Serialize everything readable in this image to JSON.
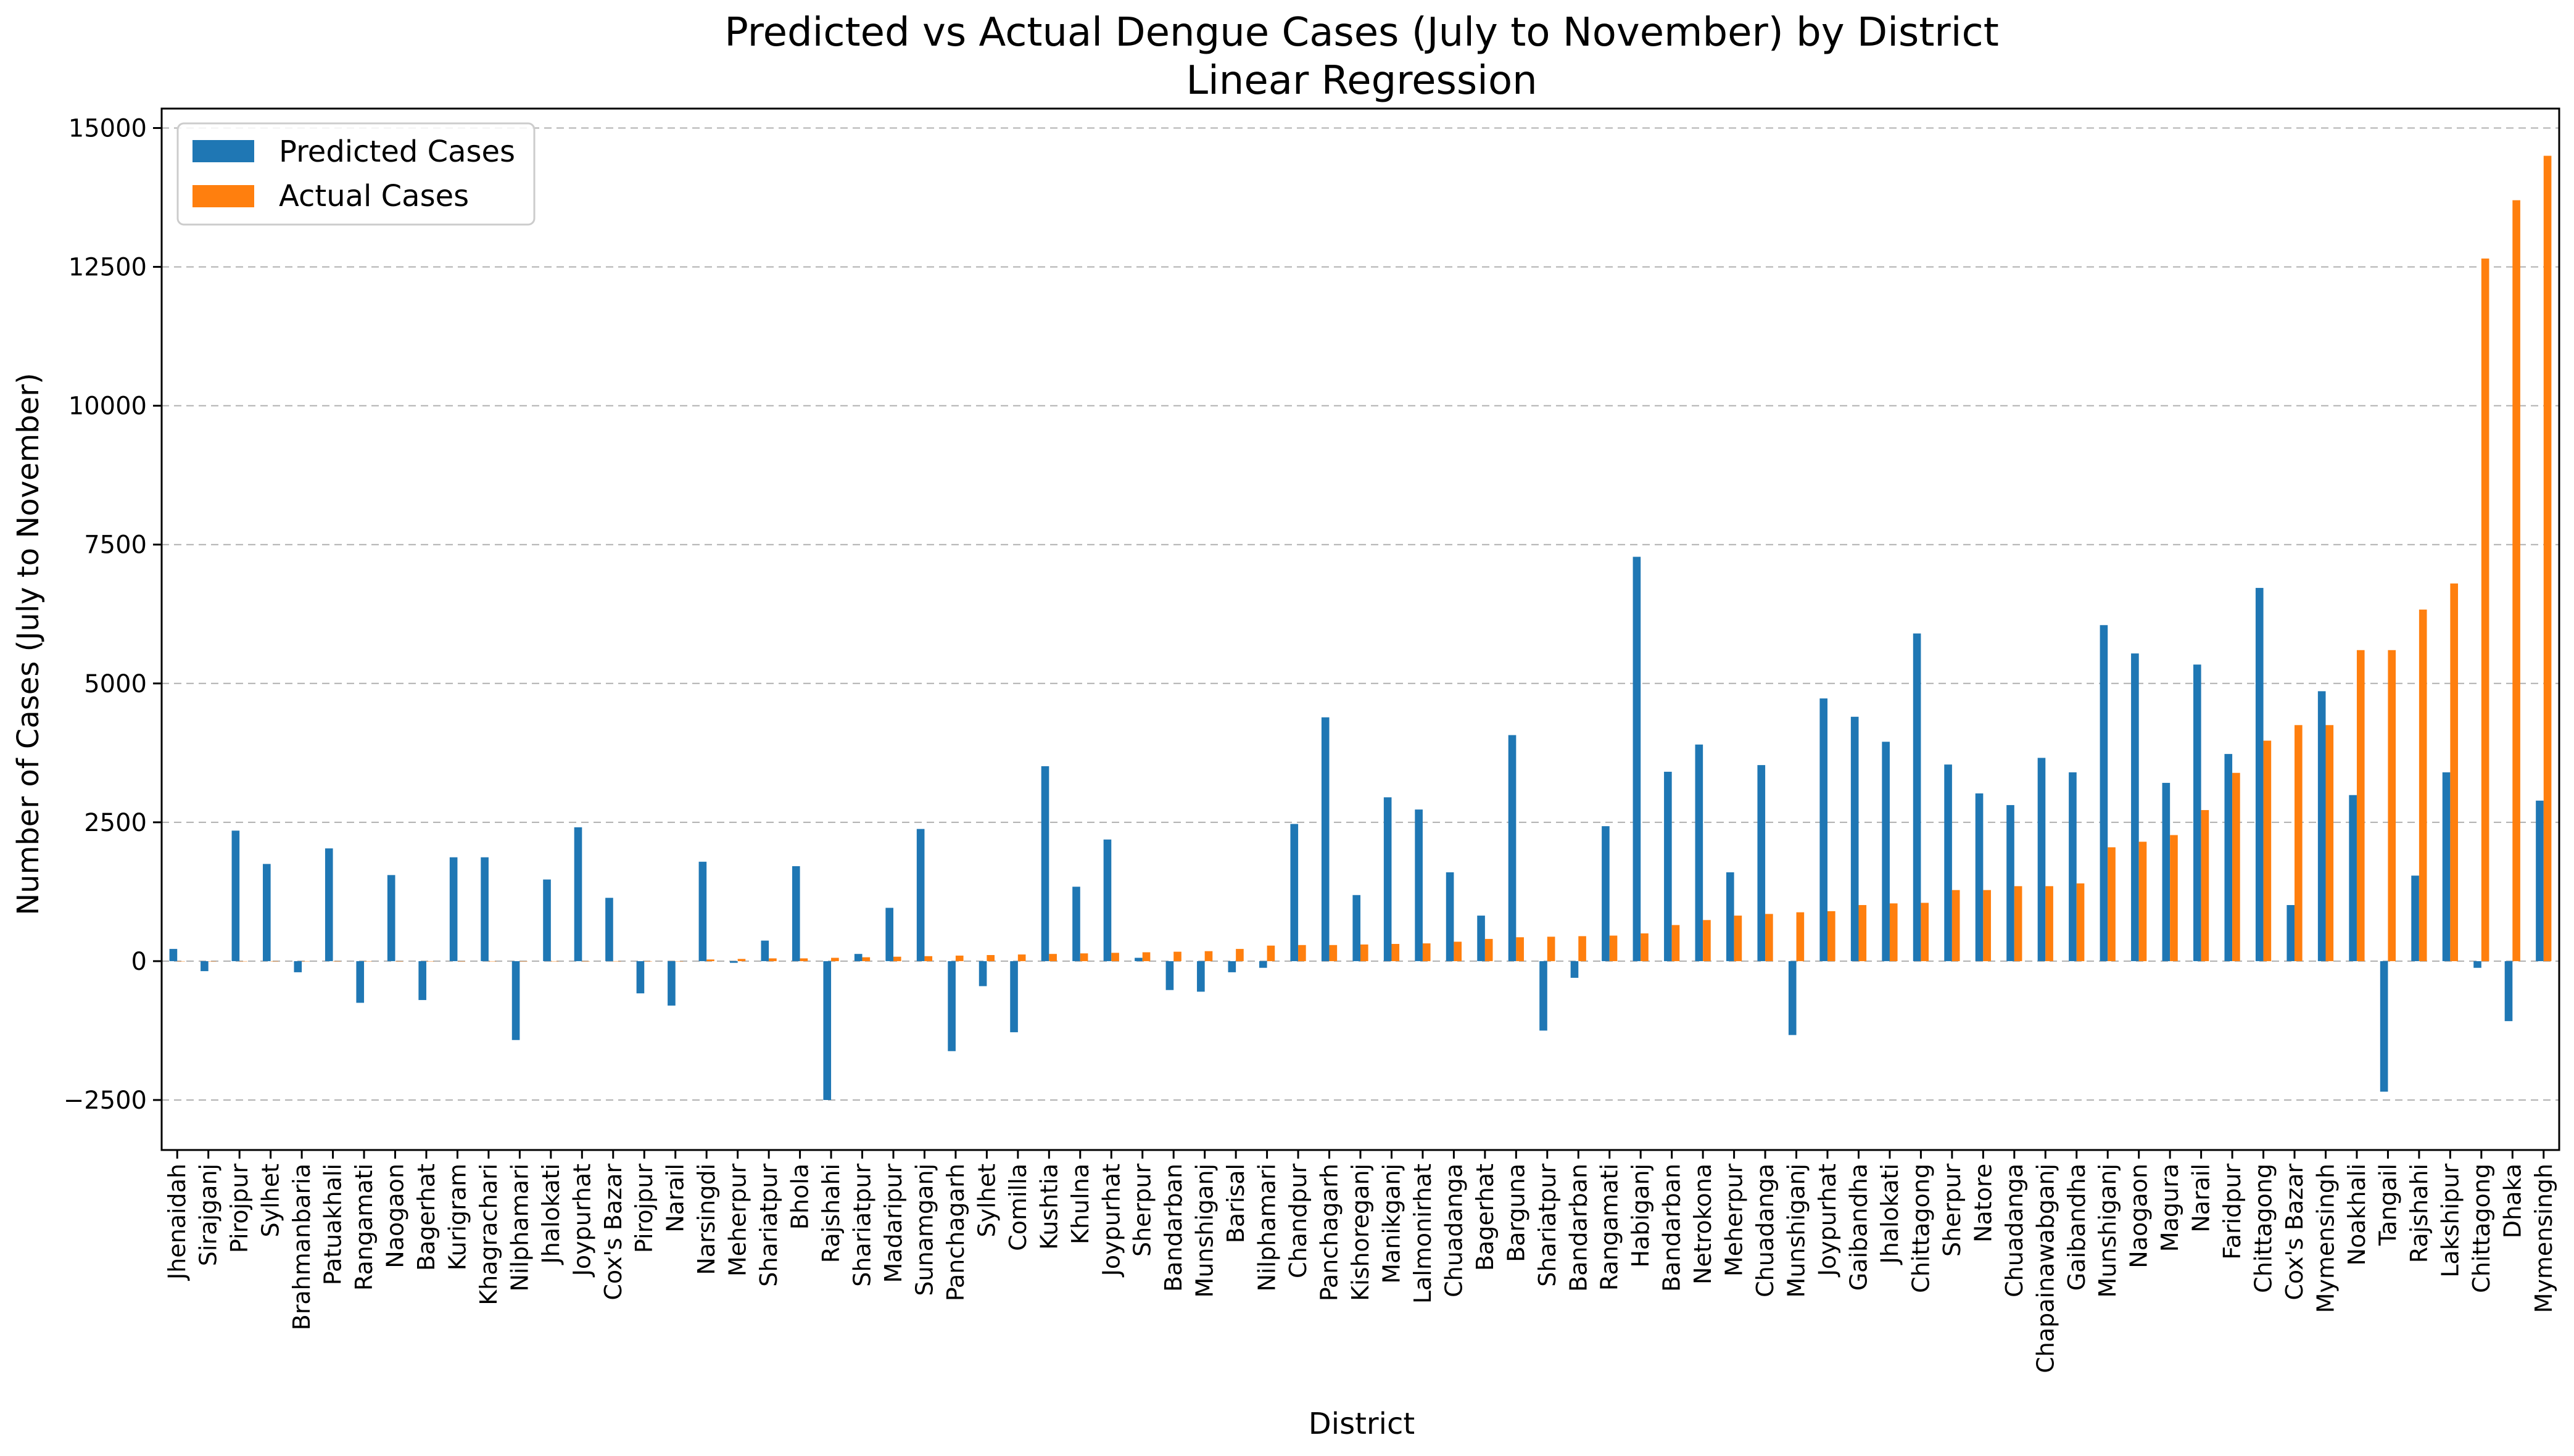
{
  "chart_data": {
    "type": "bar",
    "title": "Predicted vs Actual Dengue Cases (July to November) by District",
    "subtitle": "Linear Regression",
    "xlabel": "District",
    "ylabel": "Number of Cases (July to November)",
    "ylim": [
      -3400,
      15350
    ],
    "yticks": [
      -2500,
      0,
      2500,
      5000,
      7500,
      10000,
      12500,
      15000
    ],
    "ytick_labels": [
      "−2500",
      "0",
      "2500",
      "5000",
      "7500",
      "10000",
      "12500",
      "15000"
    ],
    "grid": "y-dashed",
    "legend_position": "top-left",
    "categories": [
      "Jhenaidah",
      "Sirajganj",
      "Pirojpur",
      "Sylhet",
      "Brahmanbaria",
      "Patuakhali",
      "Rangamati",
      "Naogaon",
      "Bagerhat",
      "Kurigram",
      "Khagrachari",
      "Nilphamari",
      "Jhalokati",
      "Joypurhat",
      "Cox's Bazar",
      "Pirojpur",
      "Narail",
      "Narsingdi",
      "Meherpur",
      "Shariatpur",
      "Bhola",
      "Rajshahi",
      "Shariatpur",
      "Madaripur",
      "Sunamganj",
      "Panchagarh",
      "Sylhet",
      "Comilla",
      "Kushtia",
      "Khulna",
      "Joypurhat",
      "Sherpur",
      "Bandarban",
      "Munshiganj",
      "Barisal",
      "Nilphamari",
      "Chandpur",
      "Panchagarh",
      "Kishoreganj",
      "Manikganj",
      "Lalmonirhat",
      "Chuadanga",
      "Bagerhat",
      "Barguna",
      "Shariatpur",
      "Bandarban",
      "Rangamati",
      "Habiganj",
      "Bandarban",
      "Netrokona",
      "Meherpur",
      "Chuadanga",
      "Munshiganj",
      "Joypurhat",
      "Gaibandha",
      "Jhalokati",
      "Chittagong",
      "Sherpur",
      "Natore",
      "Chuadanga",
      "Chapainawabganj",
      "Gaibandha",
      "Munshiganj",
      "Naogaon",
      "Magura",
      "Narail",
      "Faridpur",
      "Chittagong",
      "Cox's Bazar",
      "Mymensingh",
      "Noakhali",
      "Tangail",
      "Rajshahi",
      "Lakshipur",
      "Chittagong",
      "Dhaka",
      "Mymensingh"
    ],
    "series": [
      {
        "name": "Predicted Cases",
        "color": "#1f77b4",
        "values": [
          220,
          -180,
          2350,
          1750,
          -200,
          2030,
          -750,
          1550,
          -700,
          1870,
          1870,
          -1420,
          1470,
          2410,
          1140,
          -580,
          -800,
          1790,
          -30,
          370,
          1710,
          -2500,
          130,
          960,
          2380,
          -1620,
          -450,
          -1280,
          3510,
          1340,
          2190,
          60,
          -520,
          -550,
          -200,
          -120,
          2470,
          4390,
          1190,
          2950,
          2730,
          1600,
          820,
          4070,
          -1250,
          -300,
          2430,
          7280,
          3410,
          3900,
          1600,
          3530,
          -1330,
          4730,
          4400,
          3950,
          5900,
          3540,
          3020,
          2810,
          3660,
          3400,
          6050,
          5540,
          3210,
          5340,
          3730,
          6720,
          1010,
          4860,
          2990,
          -2350,
          1540,
          3400,
          -120,
          -1080,
          2890
        ]
      },
      {
        "name": "Actual Cases",
        "color": "#ff7f0e",
        "values": [
          0,
          0,
          0,
          0,
          0,
          0,
          0,
          0,
          0,
          0,
          0,
          0,
          0,
          0,
          0,
          0,
          0,
          30,
          40,
          50,
          50,
          60,
          70,
          80,
          90,
          100,
          110,
          120,
          130,
          140,
          150,
          160,
          170,
          180,
          220,
          280,
          290,
          290,
          300,
          310,
          320,
          350,
          400,
          430,
          440,
          450,
          460,
          500,
          650,
          740,
          820,
          850,
          880,
          900,
          1010,
          1040,
          1050,
          1280,
          1280,
          1350,
          1350,
          1400,
          2050,
          2150,
          2270,
          2720,
          3390,
          3970,
          4250,
          4250,
          5600,
          5600,
          6330,
          6800,
          12650,
          13700,
          14500
        ]
      }
    ]
  }
}
